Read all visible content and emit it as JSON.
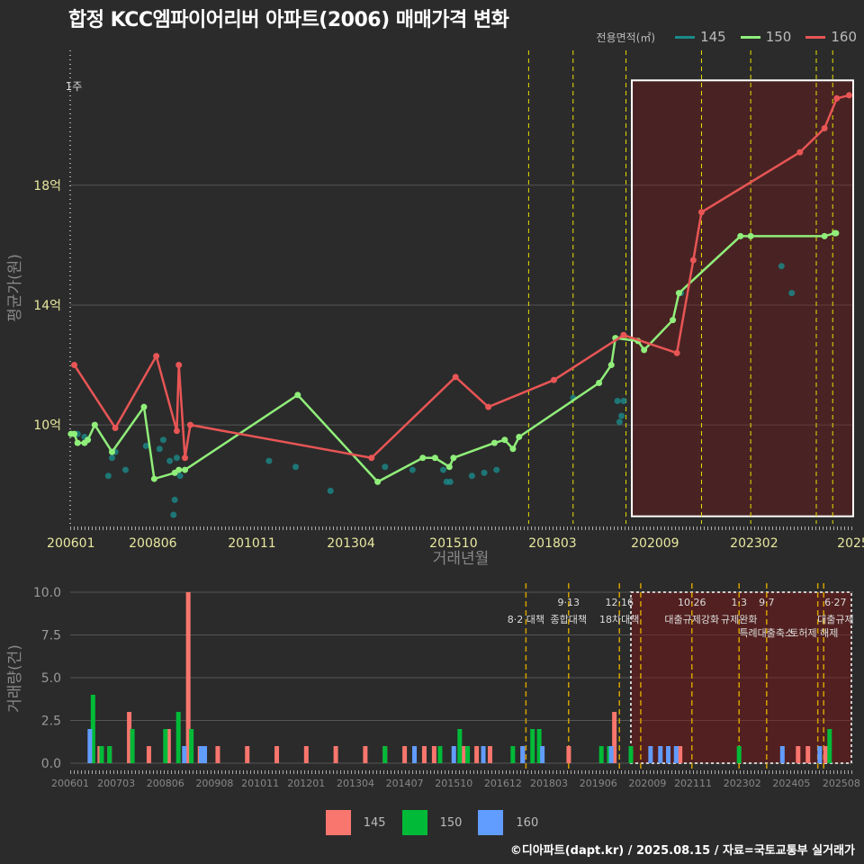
{
  "title": "합정 KCC엠파이어리버 아파트(2006) 매매가격 변화",
  "footer": "©디아파트(dapt.kr) / 2025.08.15 / 자료=국토교통부 실거래가",
  "colors": {
    "s145": "#1b8a8a",
    "s150": "#90ee7a",
    "s160": "#e85555",
    "b145": "#f8766d",
    "b150": "#00ba38",
    "b160": "#619cff",
    "policy": "#e8e000",
    "policy2": "#d4a000",
    "highlight": "#ffffff"
  },
  "legend": {
    "title": "전용면적(㎡)",
    "items": [
      {
        "label": "145",
        "key": "s145"
      },
      {
        "label": "150",
        "key": "s150"
      },
      {
        "label": "160",
        "key": "s160"
      }
    ]
  },
  "bottom_legend": [
    {
      "label": "145",
      "key": "b145"
    },
    {
      "label": "150",
      "key": "b150"
    },
    {
      "label": "160",
      "key": "b160"
    }
  ],
  "chart_data": [
    {
      "type": "line",
      "title": "합정 KCC엠파이어리버 아파트(2006) 매매가격 변화",
      "xlabel": "거래년월",
      "ylabel": "평균가(원)",
      "xlim": [
        2006.4,
        2025.5
      ],
      "ylim": [
        6.7,
        22.5
      ],
      "ytick_values": [
        10,
        14,
        18
      ],
      "ytick_labels": [
        "10억",
        "14억",
        "18억"
      ],
      "xtick_values": [
        2006.417,
        2008.417,
        2010.833,
        2013.25,
        2015.75,
        2018.167,
        2020.667,
        2023.083,
        2025.5
      ],
      "xtick_labels": [
        "200601",
        "200806",
        "201011",
        "201304",
        "201510",
        "201803",
        "202009",
        "202302",
        "2025"
      ],
      "top_left_label": "1주",
      "highlight_box": {
        "x": [
          2020.1,
          2025.5
        ],
        "y": [
          6.95,
          21.5
        ]
      },
      "policy_lines": [
        2017.583,
        2018.667,
        2019.958,
        2021.8,
        2023.0,
        2024.6,
        2025.0
      ],
      "series": [
        {
          "name": "145",
          "mode": "markers",
          "key": "s145",
          "x": [
            2006.58,
            2006.75,
            2006.83,
            2007.33,
            2007.42,
            2007.5,
            2007.75,
            2008.25,
            2008.58,
            2008.67,
            2008.83,
            2008.92,
            2008.95,
            2009.0,
            2009.08,
            2011.25,
            2011.9,
            2012.75,
            2014.08,
            2014.75,
            2015.5,
            2015.58,
            2015.67,
            2016.2,
            2016.5,
            2016.8,
            2018.67,
            2019.75,
            2019.8,
            2019.85,
            2019.9,
            2021.3,
            2023.75,
            2024.0
          ],
          "y": [
            9.7,
            9.6,
            9.5,
            8.3,
            8.9,
            9.1,
            8.5,
            9.3,
            9.2,
            9.5,
            8.8,
            7.0,
            7.5,
            8.9,
            8.3,
            8.8,
            8.6,
            7.8,
            8.6,
            8.5,
            8.5,
            8.1,
            8.1,
            8.3,
            8.4,
            8.5,
            10.9,
            10.8,
            10.1,
            10.3,
            10.8,
            14.4,
            15.3,
            14.4
          ]
        },
        {
          "name": "150",
          "mode": "lines+markers",
          "key": "s150",
          "x": [
            2006.42,
            2006.5,
            2006.58,
            2006.75,
            2006.83,
            2007.0,
            2007.42,
            2008.2,
            2008.45,
            2008.95,
            2009.05,
            2009.2,
            2011.95,
            2013.9,
            2015.0,
            2015.3,
            2015.65,
            2015.75,
            2016.75,
            2017.0,
            2017.2,
            2017.35,
            2019.3,
            2019.6,
            2019.7,
            2020.25,
            2020.4,
            2021.1,
            2021.25,
            2022.75,
            2023.0,
            2024.8,
            2025.05,
            2025.08
          ],
          "y": [
            9.7,
            9.7,
            9.4,
            9.4,
            9.5,
            10.0,
            9.1,
            10.6,
            8.2,
            8.4,
            8.5,
            8.5,
            11.0,
            8.1,
            8.9,
            8.9,
            8.6,
            8.9,
            9.4,
            9.5,
            9.2,
            9.6,
            11.4,
            12.0,
            12.9,
            12.8,
            12.5,
            13.5,
            14.4,
            16.3,
            16.3,
            16.3,
            16.4,
            16.4
          ]
        },
        {
          "name": "160",
          "mode": "lines+markers",
          "key": "s160",
          "x": [
            2006.5,
            2007.5,
            2008.5,
            2009.0,
            2009.05,
            2009.2,
            2009.33,
            2013.75,
            2015.8,
            2016.6,
            2018.2,
            2019.9,
            2021.2,
            2021.6,
            2021.8,
            2024.2,
            2024.8,
            2025.1,
            2025.4
          ],
          "y": [
            12.0,
            9.9,
            12.3,
            9.8,
            12.0,
            8.9,
            10.0,
            8.9,
            11.6,
            10.6,
            11.5,
            13.0,
            12.4,
            15.5,
            17.1,
            19.1,
            19.9,
            20.9,
            21.0
          ]
        }
      ]
    },
    {
      "type": "bar",
      "xlabel": "",
      "ylabel": "거래량(건)",
      "xlim": [
        2006.0,
        2025.9
      ],
      "ylim": [
        0,
        10
      ],
      "ytick_values": [
        0,
        2.5,
        5,
        7.5,
        10
      ],
      "ytick_labels": [
        "0.0",
        "2.5",
        "5.0",
        "7.5",
        "10.0"
      ],
      "xtick_values": [
        2006.0,
        2007.17,
        2008.42,
        2009.67,
        2010.83,
        2012.0,
        2013.25,
        2014.5,
        2015.75,
        2017.0,
        2018.17,
        2019.42,
        2020.67,
        2021.83,
        2023.08,
        2024.33,
        2025.6
      ],
      "xtick_labels": [
        "200601",
        "200703",
        "200806",
        "200908",
        "201011",
        "201201",
        "201304",
        "201407",
        "201510",
        "201612",
        "201803",
        "201906",
        "202009",
        "202111",
        "202302",
        "202405",
        "202508"
      ],
      "highlight_box": {
        "x": [
          2020.25,
          2025.9
        ],
        "y": [
          0,
          10
        ]
      },
      "policy_lines": [
        2017.583,
        2018.667,
        2019.958,
        2020.5,
        2021.8,
        2023.0,
        2023.7,
        2025.0,
        2025.15
      ],
      "annotations": [
        {
          "x": 2017.583,
          "date": "",
          "label": "8·2 대책",
          "row": 1
        },
        {
          "x": 2018.667,
          "date": "9·13",
          "label": "종합대책",
          "row": 1
        },
        {
          "x": 2019.958,
          "date": "12·16",
          "label": "18차대책",
          "row": 1
        },
        {
          "x": 2021.8,
          "date": "10·26",
          "label": "대출규제강화",
          "row": 1
        },
        {
          "x": 2023.0,
          "date": "1·3",
          "label": "규제완화",
          "row": 1
        },
        {
          "x": 2023.7,
          "date": "9·7",
          "label": "특례대출축소",
          "row": 2
        },
        {
          "x": 2024.9,
          "date": "",
          "label": "토허제 해제",
          "row": 2
        },
        {
          "x": 2025.45,
          "date": "6·27",
          "label": "대출규제",
          "row": 1
        }
      ],
      "series": [
        {
          "name": "145",
          "key": "b145",
          "x": [
            2006.75,
            2007.0,
            2007.5,
            2008.0,
            2008.5,
            2009.0,
            2009.3,
            2009.75,
            2010.5,
            2011.25,
            2012.0,
            2012.75,
            2013.5,
            2014.0,
            2014.5,
            2015.0,
            2015.25,
            2016.0,
            2016.33,
            2016.67,
            2017.5,
            2018.67,
            2019.83,
            2021.5,
            2024.5,
            2024.75,
            2025.2
          ],
          "values": [
            1,
            1,
            3,
            1,
            2,
            10,
            1,
            1,
            1,
            1,
            1,
            1,
            1,
            1,
            1,
            1,
            1,
            1,
            1,
            1,
            1,
            1,
            3,
            1,
            1,
            1,
            1
          ]
        },
        {
          "name": "150",
          "key": "b150",
          "x": [
            2006.58,
            2006.8,
            2007.0,
            2007.58,
            2008.42,
            2008.75,
            2009.08,
            2014.0,
            2015.4,
            2015.9,
            2016.1,
            2017.25,
            2017.75,
            2017.92,
            2019.5,
            2019.7,
            2020.25,
            2023.0,
            2025.3
          ],
          "values": [
            4,
            1,
            1,
            2,
            2,
            3,
            2,
            1,
            1,
            2,
            1,
            1,
            2,
            2,
            1,
            1,
            1,
            1,
            2
          ]
        },
        {
          "name": "160",
          "key": "b160",
          "x": [
            2006.5,
            2008.9,
            2009.33,
            2009.42,
            2014.75,
            2015.75,
            2016.5,
            2017.5,
            2018.0,
            2019.75,
            2020.75,
            2021.0,
            2021.2,
            2021.4,
            2024.1,
            2025.05
          ],
          "values": [
            2,
            1,
            1,
            1,
            1,
            1,
            1,
            1,
            1,
            1,
            1,
            1,
            1,
            1,
            1,
            1
          ]
        }
      ]
    }
  ]
}
